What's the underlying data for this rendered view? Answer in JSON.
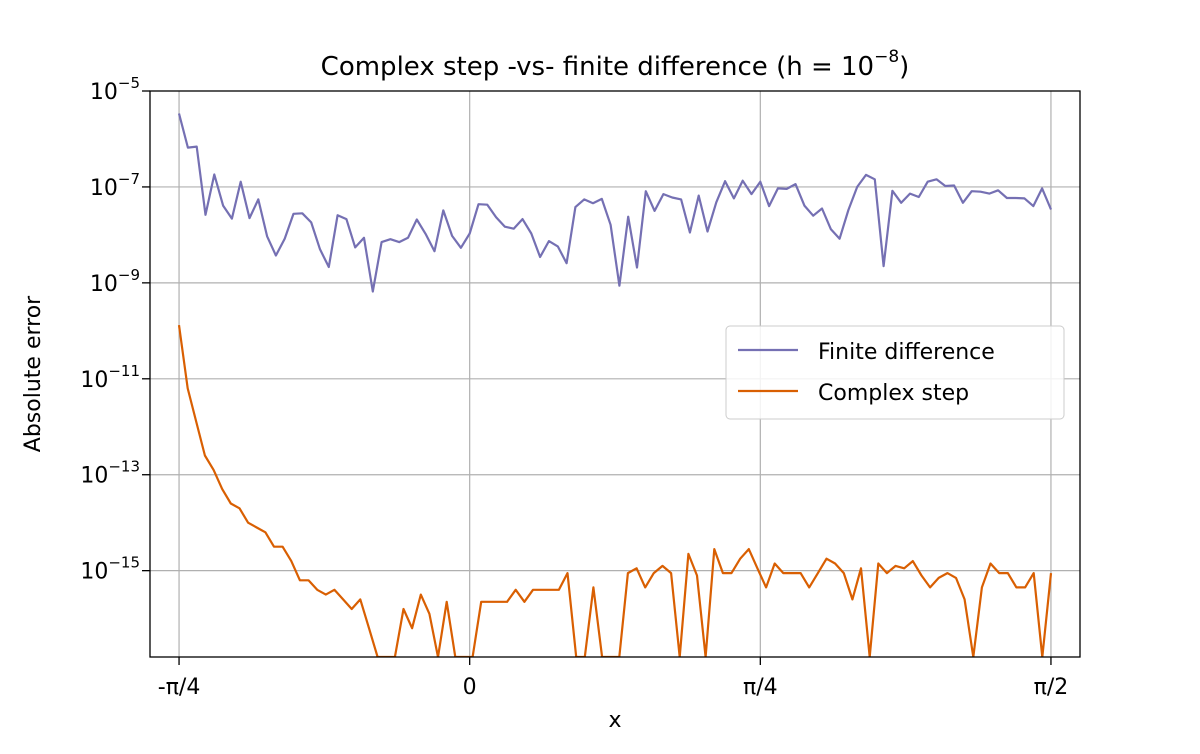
{
  "chart_data": {
    "type": "line",
    "title": "Complex step -vs- finite difference (h = 10⁻⁸)",
    "title_main": "Complex step -vs- finite difference (h = 10",
    "title_sup": "−8",
    "title_end": ")",
    "xlabel": "x",
    "ylabel": "Absolute error",
    "yscale": "log",
    "xlim": [
      -0.8639,
      1.6493
    ],
    "ylim_exp": [
      -16.8,
      -5
    ],
    "grid": true,
    "legend_position": "center-right",
    "x_ticks": [
      {
        "value": -0.7854,
        "label": "-π/4"
      },
      {
        "value": 0,
        "label": "0"
      },
      {
        "value": 0.7854,
        "label": "π/4"
      },
      {
        "value": 1.5708,
        "label": "π/2"
      }
    ],
    "y_ticks": [
      {
        "exp": -5,
        "base": "10",
        "sup": "−5"
      },
      {
        "exp": -7,
        "base": "10",
        "sup": "−7"
      },
      {
        "exp": -9,
        "base": "10",
        "sup": "−9"
      },
      {
        "exp": -11,
        "base": "10",
        "sup": "−11"
      },
      {
        "exp": -13,
        "base": "10",
        "sup": "−13"
      },
      {
        "exp": -15,
        "base": "10",
        "sup": "−15"
      }
    ],
    "series": [
      {
        "name": "Finite difference",
        "color": "#7570b3",
        "x_start": -0.7854,
        "x_end": 1.5708,
        "log10_values": [
          -5.47,
          -6.18,
          -6.16,
          -7.58,
          -6.74,
          -7.39,
          -7.66,
          -6.89,
          -7.65,
          -7.26,
          -8.03,
          -8.43,
          -8.08,
          -7.56,
          -7.55,
          -7.74,
          -8.3,
          -8.67,
          -7.59,
          -7.67,
          -8.26,
          -8.06,
          -9.18,
          -8.15,
          -8.09,
          -8.15,
          -8.06,
          -7.68,
          -7.98,
          -8.34,
          -7.49,
          -8.02,
          -8.27,
          -7.97,
          -7.36,
          -7.37,
          -7.63,
          -7.83,
          -7.87,
          -7.67,
          -7.97,
          -8.46,
          -8.13,
          -8.24,
          -8.59,
          -7.42,
          -7.26,
          -7.34,
          -7.25,
          -7.79,
          -9.06,
          -7.62,
          -8.68,
          -7.09,
          -7.5,
          -7.15,
          -7.22,
          -7.26,
          -7.95,
          -7.18,
          -7.93,
          -7.32,
          -6.88,
          -7.24,
          -6.87,
          -7.15,
          -6.89,
          -7.4,
          -7.03,
          -7.04,
          -6.94,
          -7.39,
          -7.6,
          -7.45,
          -7.88,
          -8.08,
          -7.48,
          -7.0,
          -6.75,
          -6.84,
          -8.65,
          -7.08,
          -7.33,
          -7.14,
          -7.21,
          -6.89,
          -6.84,
          -6.98,
          -6.97,
          -7.33,
          -7.09,
          -7.1,
          -7.14,
          -7.07,
          -7.23,
          -7.23,
          -7.24,
          -7.4,
          -7.03,
          -7.47
        ]
      },
      {
        "name": "Complex step",
        "color": "#d95f02",
        "x_start": -0.7854,
        "x_end": 1.5708,
        "log10_values": [
          -9.88,
          -11.2,
          -11.9,
          -12.6,
          -12.9,
          -13.3,
          -13.6,
          -13.7,
          -14.0,
          -14.1,
          -14.2,
          -14.5,
          -14.5,
          -14.8,
          -15.2,
          -15.2,
          -15.4,
          -15.5,
          -15.4,
          -15.6,
          -15.8,
          -15.6,
          -16.2,
          -16.8,
          -16.8,
          -16.8,
          -15.8,
          -16.2,
          -15.5,
          -15.9,
          -16.8,
          -15.65,
          -16.8,
          -16.8,
          -16.8,
          -15.65,
          -15.65,
          -15.65,
          -15.65,
          -15.4,
          -15.65,
          -15.4,
          -15.4,
          -15.4,
          -15.4,
          -15.05,
          -16.8,
          -16.8,
          -15.35,
          -16.8,
          -16.8,
          -16.8,
          -15.05,
          -14.95,
          -15.35,
          -15.05,
          -14.9,
          -15.05,
          -16.8,
          -14.65,
          -15.1,
          -16.8,
          -14.55,
          -15.05,
          -15.05,
          -14.75,
          -14.55,
          -14.95,
          -15.35,
          -14.85,
          -15.05,
          -15.05,
          -15.05,
          -15.35,
          -15.05,
          -14.75,
          -14.85,
          -15.05,
          -15.6,
          -14.95,
          -16.8,
          -14.85,
          -15.05,
          -14.9,
          -14.95,
          -14.8,
          -15.1,
          -15.35,
          -15.15,
          -15.05,
          -15.15,
          -15.6,
          -16.8,
          -15.35,
          -14.85,
          -15.05,
          -15.05,
          -15.35,
          -15.35,
          -15.05,
          -16.8,
          -15.05
        ]
      }
    ]
  }
}
